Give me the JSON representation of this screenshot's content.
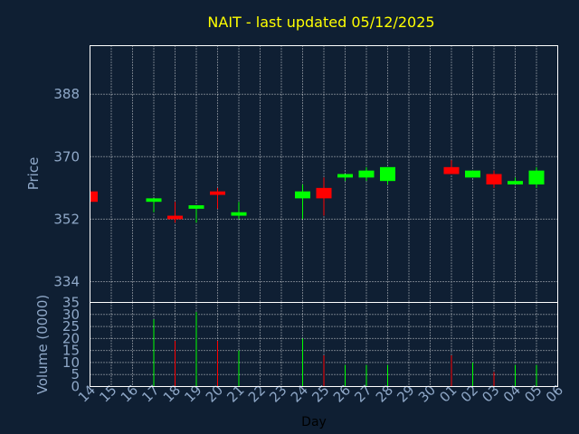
{
  "title": "NAIT - last updated 05/12/2025",
  "colors": {
    "background": "#0f1f33",
    "up": "#00ff00",
    "down": "#ff0000",
    "title": "#ffff00",
    "axis_text": "#8fa8c8",
    "grid": "#ffffff"
  },
  "chart_data": [
    {
      "type": "candlestick",
      "ylabel": "Price",
      "y_ticks": [
        334,
        352,
        370,
        388
      ],
      "ylim": [
        328,
        402
      ],
      "grid": true,
      "candles": [
        {
          "day": "14",
          "open": 360,
          "high": 360,
          "low": 357,
          "close": 357
        },
        {
          "day": "17",
          "open": 357,
          "high": 358,
          "low": 354,
          "close": 358
        },
        {
          "day": "18",
          "open": 353,
          "high": 357,
          "low": 351,
          "close": 352
        },
        {
          "day": "19",
          "open": 355,
          "high": 356,
          "low": 351,
          "close": 356
        },
        {
          "day": "20",
          "open": 360,
          "high": 361,
          "low": 355,
          "close": 359
        },
        {
          "day": "21",
          "open": 353,
          "high": 357,
          "low": 352,
          "close": 354
        },
        {
          "day": "24",
          "open": 358,
          "high": 362,
          "low": 352,
          "close": 360
        },
        {
          "day": "25",
          "open": 361,
          "high": 364,
          "low": 353,
          "close": 358
        },
        {
          "day": "26",
          "open": 364,
          "high": 365,
          "low": 363,
          "close": 365
        },
        {
          "day": "27",
          "open": 364,
          "high": 367,
          "low": 363,
          "close": 366
        },
        {
          "day": "28",
          "open": 363,
          "high": 367,
          "low": 362,
          "close": 367
        },
        {
          "day": "01",
          "open": 367,
          "high": 369,
          "low": 365,
          "close": 365
        },
        {
          "day": "02",
          "open": 364,
          "high": 366,
          "low": 364,
          "close": 366
        },
        {
          "day": "03",
          "open": 365,
          "high": 366,
          "low": 361,
          "close": 362
        },
        {
          "day": "04",
          "open": 362,
          "high": 364,
          "low": 362,
          "close": 363
        },
        {
          "day": "05",
          "open": 362,
          "high": 367,
          "low": 361,
          "close": 366
        }
      ]
    },
    {
      "type": "bar",
      "ylabel": "Volume (0000)",
      "xlabel": "Day",
      "y_ticks": [
        0,
        5,
        10,
        15,
        20,
        25,
        30,
        35
      ],
      "ylim": [
        0,
        35
      ],
      "grid": true,
      "categories": [
        "14",
        "15",
        "16",
        "17",
        "18",
        "19",
        "20",
        "21",
        "22",
        "23",
        "24",
        "25",
        "26",
        "27",
        "28",
        "29",
        "30",
        "01",
        "02",
        "03",
        "04",
        "05",
        "06"
      ],
      "values": [
        0,
        0,
        0,
        28,
        19,
        31,
        19,
        15,
        0,
        0,
        20,
        13,
        9,
        9,
        9,
        0,
        0,
        13,
        10,
        6,
        9,
        9,
        0
      ],
      "bar_colors": [
        "none",
        "none",
        "none",
        "up",
        "down",
        "up",
        "down",
        "up",
        "none",
        "none",
        "up",
        "down",
        "up",
        "up",
        "up",
        "none",
        "none",
        "down",
        "up",
        "down",
        "up",
        "up",
        "none"
      ]
    }
  ]
}
